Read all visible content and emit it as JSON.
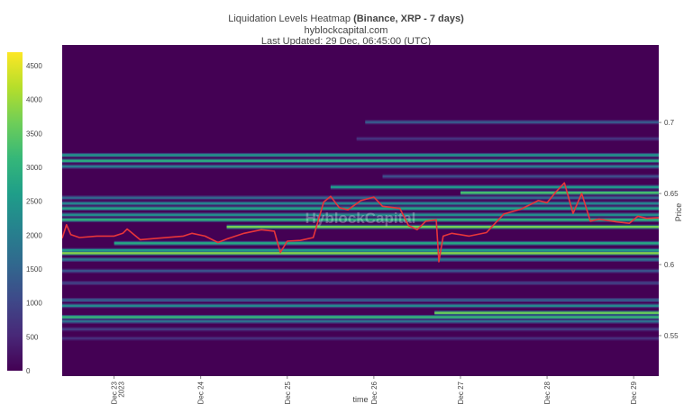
{
  "chart_data": {
    "type": "heatmap",
    "title": {
      "main": "Liquidation Levels Heatmap",
      "bold": "(Binance, XRP - 7 days)",
      "line2": "hyblockcapital.com",
      "line3": "Last Updated: 29 Dec, 06:45:00 (UTC)"
    },
    "watermark": "HyblockCapital",
    "xlabel": "time",
    "ylabel": "Price",
    "ylim": [
      0.5215,
      0.7545
    ],
    "y_ticks": [
      {
        "v": 0.55,
        "label": "0.55"
      },
      {
        "v": 0.6,
        "label": "0.6"
      },
      {
        "v": 0.65,
        "label": "0.65"
      },
      {
        "v": 0.7,
        "label": "0.7"
      }
    ],
    "x_range_days": [
      22.4,
      29.29
    ],
    "x_ticks": [
      {
        "d": 23,
        "label": "Dec 23",
        "sub": "2023"
      },
      {
        "d": 24,
        "label": "Dec 24"
      },
      {
        "d": 25,
        "label": "Dec 25"
      },
      {
        "d": 26,
        "label": "Dec 26"
      },
      {
        "d": 27,
        "label": "Dec 27"
      },
      {
        "d": 28,
        "label": "Dec 28"
      },
      {
        "d": 29,
        "label": "Dec 29"
      }
    ],
    "colorbar": {
      "min": 0,
      "max": 4700,
      "ticks": [
        0,
        500,
        1000,
        1500,
        2000,
        2500,
        3000,
        3500,
        4000,
        4500
      ],
      "colors": [
        "#440154",
        "#482878",
        "#3e4989",
        "#31688e",
        "#26828e",
        "#1f9e89",
        "#35b779",
        "#6ece58",
        "#b5de2b",
        "#fde725"
      ]
    },
    "price_series": [
      {
        "t": 22.4,
        "p": 0.6185
      },
      {
        "t": 22.45,
        "p": 0.628
      },
      {
        "t": 22.5,
        "p": 0.621
      },
      {
        "t": 22.6,
        "p": 0.619
      },
      {
        "t": 22.8,
        "p": 0.62
      },
      {
        "t": 23.0,
        "p": 0.62
      },
      {
        "t": 23.1,
        "p": 0.622
      },
      {
        "t": 23.15,
        "p": 0.625
      },
      {
        "t": 23.3,
        "p": 0.6175
      },
      {
        "t": 23.5,
        "p": 0.6185
      },
      {
        "t": 23.8,
        "p": 0.62
      },
      {
        "t": 23.9,
        "p": 0.622
      },
      {
        "t": 24.05,
        "p": 0.62
      },
      {
        "t": 24.2,
        "p": 0.6155
      },
      {
        "t": 24.3,
        "p": 0.618
      },
      {
        "t": 24.5,
        "p": 0.622
      },
      {
        "t": 24.7,
        "p": 0.6245
      },
      {
        "t": 24.85,
        "p": 0.6235
      },
      {
        "t": 24.92,
        "p": 0.6085
      },
      {
        "t": 25.0,
        "p": 0.6165
      },
      {
        "t": 25.15,
        "p": 0.617
      },
      {
        "t": 25.3,
        "p": 0.619
      },
      {
        "t": 25.42,
        "p": 0.644
      },
      {
        "t": 25.5,
        "p": 0.648
      },
      {
        "t": 25.6,
        "p": 0.64
      },
      {
        "t": 25.7,
        "p": 0.6385
      },
      {
        "t": 25.85,
        "p": 0.645
      },
      {
        "t": 26.0,
        "p": 0.6475
      },
      {
        "t": 26.1,
        "p": 0.641
      },
      {
        "t": 26.3,
        "p": 0.6395
      },
      {
        "t": 26.4,
        "p": 0.6275
      },
      {
        "t": 26.5,
        "p": 0.6245
      },
      {
        "t": 26.6,
        "p": 0.6305
      },
      {
        "t": 26.72,
        "p": 0.6315
      },
      {
        "t": 26.75,
        "p": 0.602
      },
      {
        "t": 26.8,
        "p": 0.62
      },
      {
        "t": 26.9,
        "p": 0.622
      },
      {
        "t": 27.1,
        "p": 0.62
      },
      {
        "t": 27.3,
        "p": 0.6225
      },
      {
        "t": 27.5,
        "p": 0.6355
      },
      {
        "t": 27.7,
        "p": 0.639
      },
      {
        "t": 27.9,
        "p": 0.645
      },
      {
        "t": 28.0,
        "p": 0.6435
      },
      {
        "t": 28.1,
        "p": 0.651
      },
      {
        "t": 28.2,
        "p": 0.6575
      },
      {
        "t": 28.3,
        "p": 0.636
      },
      {
        "t": 28.4,
        "p": 0.65
      },
      {
        "t": 28.5,
        "p": 0.6305
      },
      {
        "t": 28.6,
        "p": 0.632
      },
      {
        "t": 28.8,
        "p": 0.63
      },
      {
        "t": 28.95,
        "p": 0.629
      },
      {
        "t": 29.05,
        "p": 0.634
      },
      {
        "t": 29.15,
        "p": 0.6325
      },
      {
        "t": 29.29,
        "p": 0.633
      }
    ],
    "liquidation_bands": [
      {
        "p": 0.7002,
        "start": 25.9,
        "value": 1300
      },
      {
        "p": 0.6885,
        "start": 25.8,
        "value": 700
      },
      {
        "p": 0.677,
        "start": 22.4,
        "value": 2400
      },
      {
        "p": 0.673,
        "start": 22.4,
        "value": 2900
      },
      {
        "p": 0.669,
        "start": 22.4,
        "value": 1900
      },
      {
        "p": 0.662,
        "start": 26.1,
        "value": 1100
      },
      {
        "p": 0.6545,
        "start": 25.5,
        "value": 2500
      },
      {
        "p": 0.6505,
        "start": 27.0,
        "value": 3300
      },
      {
        "p": 0.647,
        "start": 22.4,
        "value": 1500
      },
      {
        "p": 0.643,
        "start": 22.4,
        "value": 2100
      },
      {
        "p": 0.6395,
        "start": 22.4,
        "value": 2700
      },
      {
        "p": 0.635,
        "start": 22.4,
        "value": 2300
      },
      {
        "p": 0.6315,
        "start": 22.4,
        "value": 3000
      },
      {
        "p": 0.6265,
        "start": 24.3,
        "value": 3700
      },
      {
        "p": 0.615,
        "start": 23.0,
        "value": 2800
      },
      {
        "p": 0.61,
        "start": 22.4,
        "value": 2600
      },
      {
        "p": 0.608,
        "start": 22.4,
        "value": 3800
      },
      {
        "p": 0.6035,
        "start": 22.4,
        "value": 1800
      },
      {
        "p": 0.5955,
        "start": 22.4,
        "value": 1200
      },
      {
        "p": 0.587,
        "start": 22.4,
        "value": 900
      },
      {
        "p": 0.575,
        "start": 22.4,
        "value": 1400
      },
      {
        "p": 0.571,
        "start": 22.4,
        "value": 2200
      },
      {
        "p": 0.566,
        "start": 26.7,
        "value": 3600
      },
      {
        "p": 0.563,
        "start": 22.4,
        "value": 3100
      },
      {
        "p": 0.56,
        "start": 22.4,
        "value": 1700
      },
      {
        "p": 0.5545,
        "start": 22.4,
        "value": 800
      },
      {
        "p": 0.548,
        "start": 22.4,
        "value": 600
      }
    ]
  }
}
